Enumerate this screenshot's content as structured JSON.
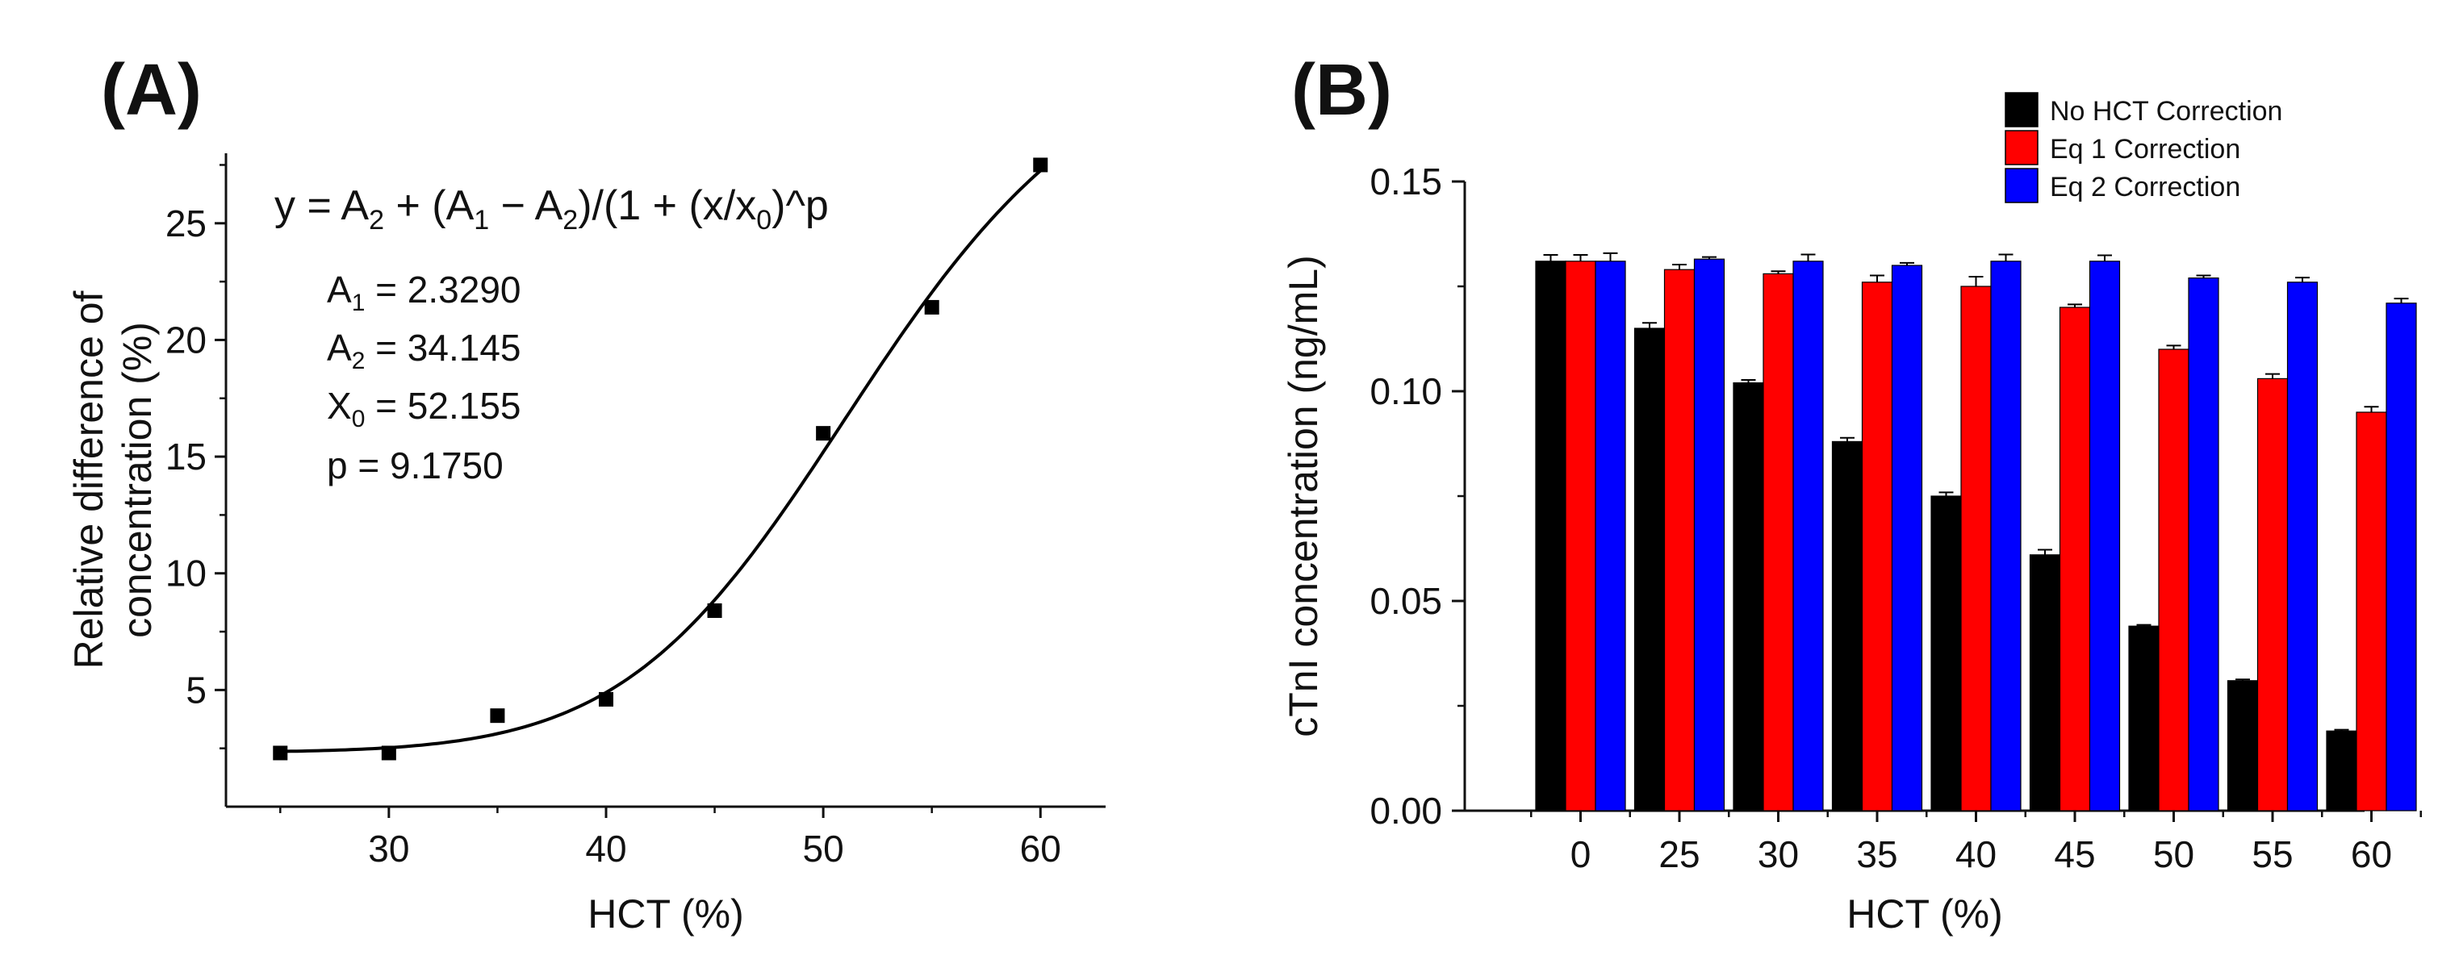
{
  "chart_data": [
    {
      "panel_label": "(A)",
      "type": "scatter",
      "title": "",
      "xlabel": "HCT (%)",
      "ylabel_line1": "Relative difference of",
      "ylabel_line2": "concentration (%)",
      "xlim": [
        22.5,
        63
      ],
      "ylim": [
        0,
        28
      ],
      "xticks": [
        30,
        40,
        50,
        60
      ],
      "yticks": [
        5,
        10,
        15,
        20,
        25
      ],
      "x": [
        25,
        30,
        35,
        40,
        45,
        50,
        55,
        60
      ],
      "y": [
        2.3,
        2.3,
        3.9,
        4.6,
        8.4,
        16.0,
        21.4,
        27.5
      ],
      "fit": {
        "equation_prefix": "y = A",
        "equation": "y = A2 + (A1 − A2)/(1 + (x/x0)^p",
        "A1": 2.329,
        "A2": 34.145,
        "x0": 52.155,
        "p": 9.175,
        "params": [
          {
            "sym": "A",
            "sub": "1",
            "rest": " = 2.3290"
          },
          {
            "sym": "A",
            "sub": "2",
            "rest": " = 34.145"
          },
          {
            "sym": "X",
            "sub": "0",
            "rest": " = 52.155"
          },
          {
            "sym": "p",
            "sub": "",
            "rest": " = 9.1750"
          }
        ]
      }
    },
    {
      "panel_label": "(B)",
      "type": "bar",
      "title": "",
      "xlabel": "HCT (%)",
      "ylabel": "cTnI concentration (ng/mL)",
      "ylim": [
        0,
        0.15
      ],
      "yticks": [
        0,
        0.05,
        0.1,
        0.15
      ],
      "ytick_labels": [
        "0.00",
        "0.05",
        "0.10",
        "0.15"
      ],
      "categories": [
        "0",
        "25",
        "30",
        "35",
        "40",
        "45",
        "50",
        "55",
        "60"
      ],
      "series": [
        {
          "name": "No HCT Correction",
          "color": "#000000",
          "values": [
            0.131,
            0.115,
            0.102,
            0.088,
            0.075,
            0.061,
            0.044,
            0.031,
            0.019
          ],
          "errors": [
            0.0015,
            0.0013,
            0.0007,
            0.0009,
            0.0009,
            0.0012,
            0.0003,
            0.0003,
            0.0003
          ]
        },
        {
          "name": "Eq 1 Correction",
          "color": "#ff0000",
          "values": [
            0.131,
            0.129,
            0.128,
            0.126,
            0.125,
            0.12,
            0.11,
            0.103,
            0.095
          ],
          "errors": [
            0.0015,
            0.0012,
            0.0006,
            0.0016,
            0.0023,
            0.0007,
            0.0009,
            0.0011,
            0.0013
          ]
        },
        {
          "name": "Eq 2 Correction",
          "color": "#0000ff",
          "values": [
            0.131,
            0.1315,
            0.131,
            0.13,
            0.131,
            0.131,
            0.127,
            0.126,
            0.121
          ],
          "errors": [
            0.0019,
            0.0005,
            0.0016,
            0.0006,
            0.0016,
            0.0014,
            0.0006,
            0.0011,
            0.0011
          ]
        }
      ],
      "legend_position": "top-right"
    }
  ]
}
